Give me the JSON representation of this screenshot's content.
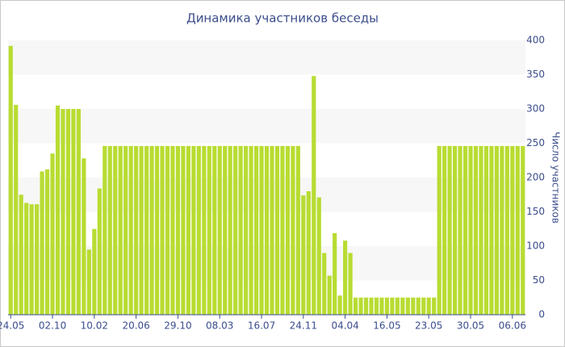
{
  "chart_data": {
    "type": "bar",
    "title": "Динамика участников беседы",
    "y_axis_label": "Число участников",
    "categories": [
      "24.05",
      null,
      null,
      null,
      null,
      null,
      null,
      null,
      "02.10",
      null,
      null,
      null,
      null,
      null,
      null,
      null,
      "10.02",
      null,
      null,
      null,
      null,
      null,
      null,
      null,
      "20.06",
      null,
      null,
      null,
      null,
      null,
      null,
      null,
      "29.10",
      null,
      null,
      null,
      null,
      null,
      null,
      null,
      "08.03",
      null,
      null,
      null,
      null,
      null,
      null,
      null,
      "16.07",
      null,
      null,
      null,
      null,
      null,
      null,
      null,
      "24.11",
      null,
      null,
      null,
      null,
      null,
      null,
      null,
      "04.04",
      null,
      null,
      null,
      null,
      null,
      null,
      null,
      "16.05",
      null,
      null,
      null,
      null,
      null,
      null,
      null,
      "23.05",
      null,
      null,
      null,
      null,
      null,
      null,
      null,
      "30.05",
      null,
      null,
      null,
      null,
      null,
      null,
      null,
      "06.06",
      null,
      null
    ],
    "values": [
      392,
      306,
      175,
      163,
      161,
      161,
      209,
      212,
      235,
      305,
      300,
      300,
      300,
      300,
      228,
      95,
      125,
      184,
      246,
      246,
      246,
      246,
      246,
      246,
      246,
      246,
      246,
      246,
      246,
      246,
      246,
      246,
      246,
      246,
      246,
      246,
      246,
      246,
      246,
      246,
      246,
      246,
      246,
      246,
      246,
      246,
      246,
      246,
      246,
      246,
      246,
      246,
      246,
      246,
      246,
      246,
      174,
      180,
      348,
      171,
      90,
      57,
      119,
      28,
      108,
      90,
      25,
      25,
      25,
      25,
      25,
      25,
      25,
      25,
      25,
      25,
      25,
      25,
      25,
      25,
      25,
      25,
      246,
      246,
      246,
      246,
      246,
      246,
      246,
      246,
      246,
      246,
      246,
      246,
      246,
      246,
      246,
      246,
      246
    ],
    "color": "#b8dc32",
    "ylim": [
      0,
      400
    ],
    "yticks": [
      0,
      50,
      100,
      150,
      200,
      250,
      300,
      350,
      400
    ],
    "y_axis_side": "right",
    "grid": true
  }
}
